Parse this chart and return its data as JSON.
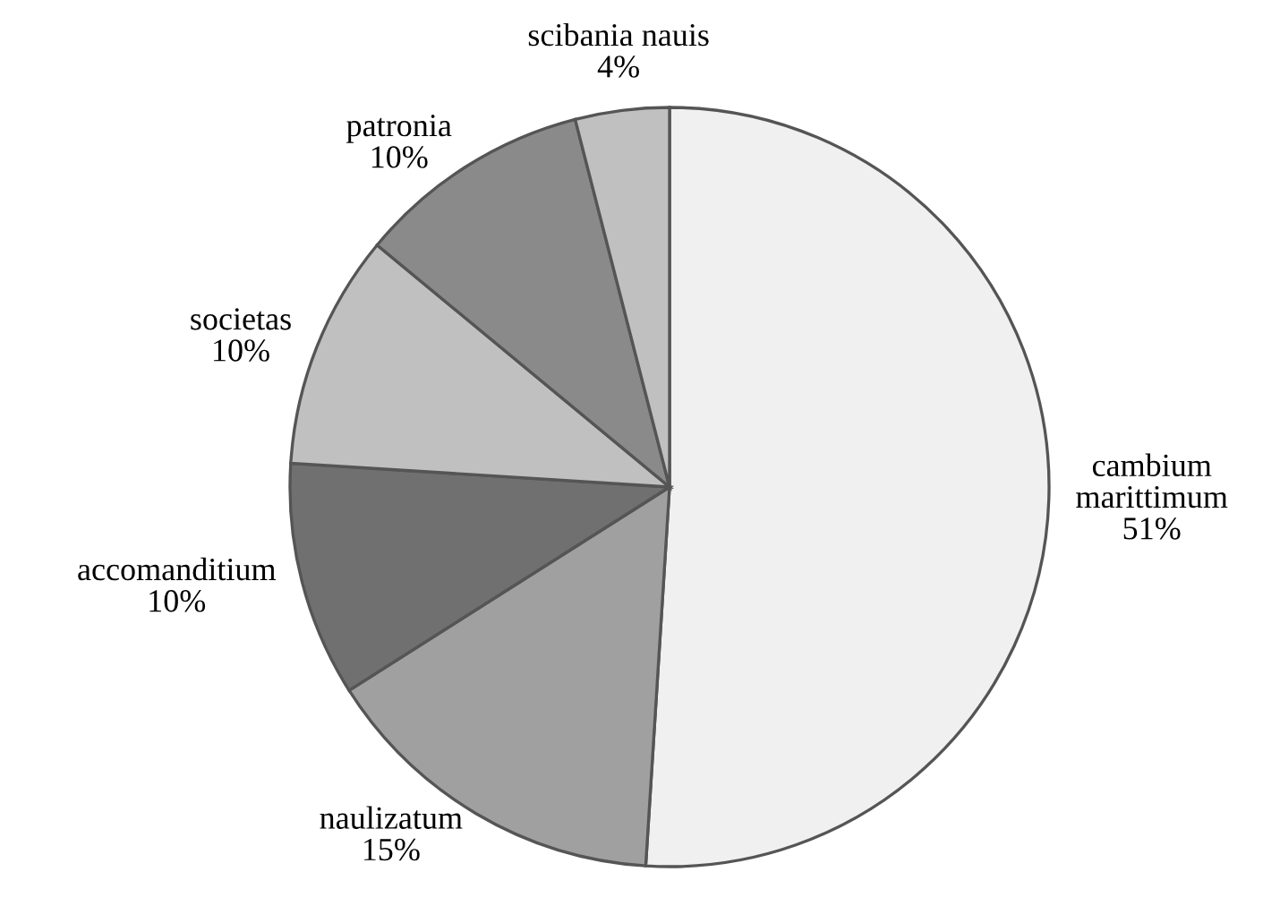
{
  "chart_data": {
    "type": "pie",
    "categories": [
      "cambium\nmarittimum",
      "naulizatum",
      "accomanditium",
      "societas",
      "patronia",
      "scibania nauis"
    ],
    "values": [
      51,
      15,
      10,
      10,
      10,
      4
    ],
    "colors": [
      "#f0f0f0",
      "#a0a0a0",
      "#707070",
      "#c0c0c0",
      "#8a8a8a",
      "#c0c0c0"
    ],
    "value_labels": [
      "51%",
      "15%",
      "10%",
      "10%",
      "10%",
      "4%"
    ]
  }
}
